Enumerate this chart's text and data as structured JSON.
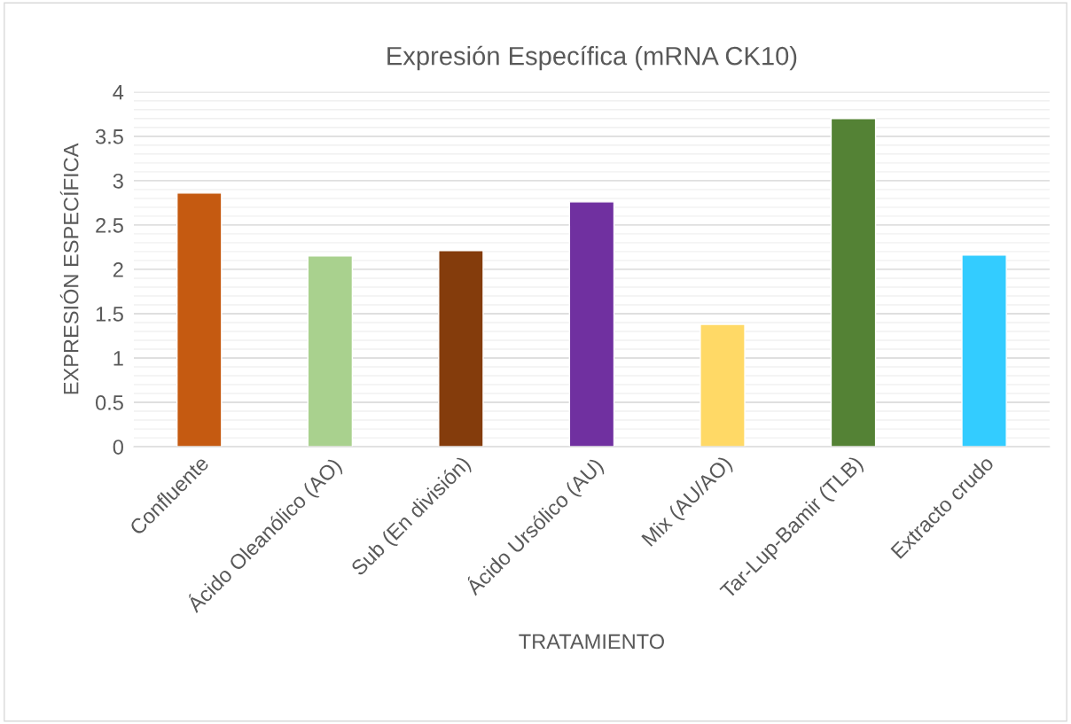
{
  "chart_data": {
    "type": "bar",
    "title": "Expresión Específica (mRNA CK10)",
    "xlabel": "TRATAMIENTO",
    "ylabel": "EXPRESIÓN ESPECÍFICA",
    "categories": [
      "Confluente",
      "Ácido Oleanólico (AO)",
      "Sub (En división)",
      "Ácido Ursólico (AU)",
      "Mix (AU/AO)",
      "Tar-Lup-Bamir (TLB)",
      "Extracto crudo"
    ],
    "values": [
      2.86,
      2.15,
      2.21,
      2.76,
      1.38,
      3.7,
      2.16
    ],
    "colors": [
      "#c55a11",
      "#a9d18e",
      "#843c0c",
      "#7030a0",
      "#ffd966",
      "#548235",
      "#33ccff"
    ],
    "ylim": [
      0,
      4
    ],
    "yticks": [
      0,
      {
        "value": 0.5,
        "label": "0.5"
      },
      1,
      {
        "value": 1.5,
        "label": "1.5"
      },
      2,
      {
        "value": 2.5,
        "label": "2.5"
      },
      3,
      {
        "value": 3.5,
        "label": "3.5"
      },
      4
    ],
    "grid": "y",
    "legend": false
  }
}
